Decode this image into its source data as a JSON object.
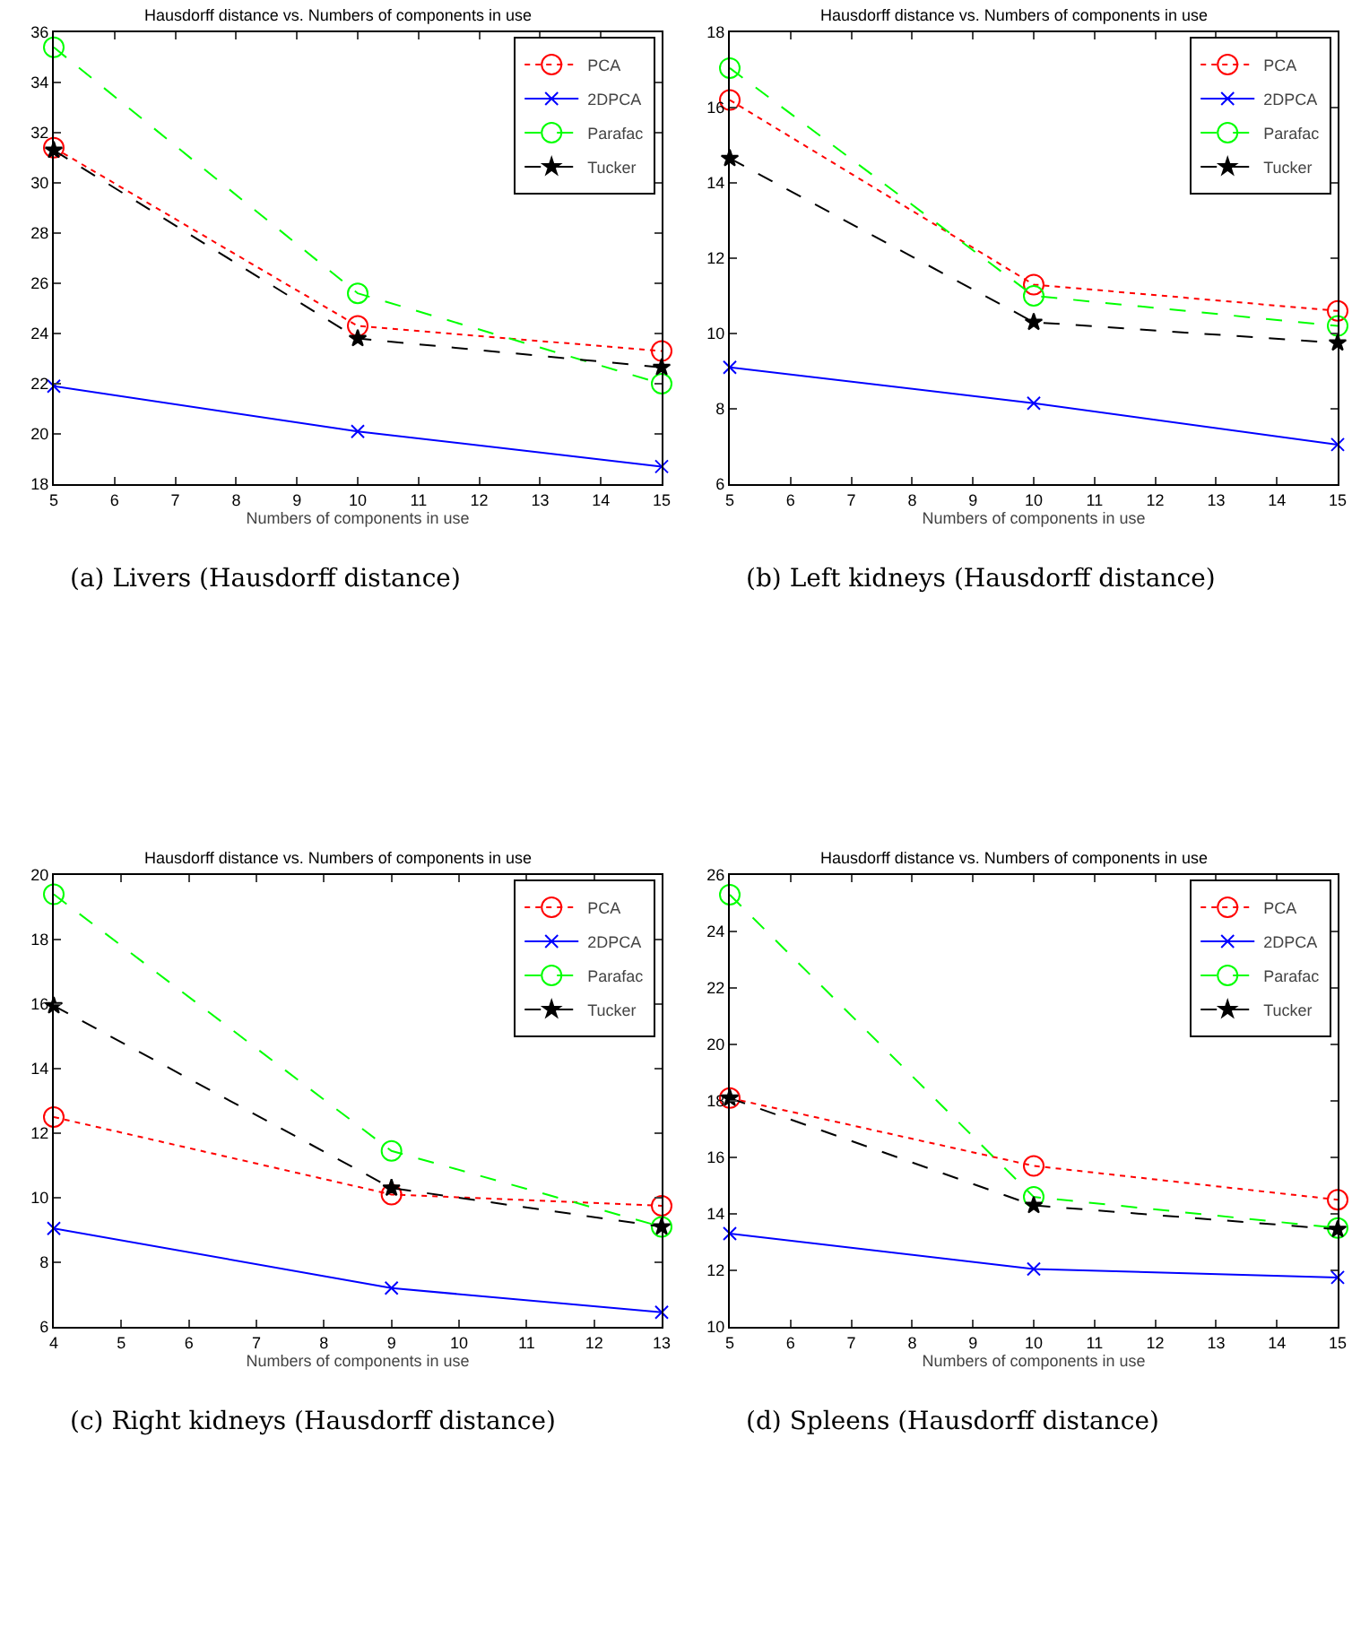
{
  "chart_data": [
    {
      "type": "line",
      "title": "Hausdorff distance vs. Numbers of components in use",
      "xlabel": "Numbers of components in use",
      "annotations": [
        "(a) Livers (Hausdorff distance)"
      ],
      "x": [
        5,
        10,
        15
      ],
      "xlim": [
        5,
        15
      ],
      "xticks": [
        5,
        6,
        7,
        8,
        9,
        10,
        11,
        12,
        13,
        14,
        15
      ],
      "ylim": [
        18,
        36
      ],
      "yticks": [
        18,
        20,
        22,
        24,
        26,
        28,
        30,
        32,
        34,
        36
      ],
      "grid": false,
      "legend": "top right",
      "series": [
        {
          "name": "PCA",
          "color": "#ff0000",
          "values": [
            31.4,
            24.3,
            23.3
          ],
          "marker": "circle",
          "line_style": "dotted"
        },
        {
          "name": "2DPCA",
          "color": "#0000ff",
          "values": [
            21.9,
            20.1,
            18.7
          ],
          "marker": "cross",
          "line_style": "solid"
        },
        {
          "name": "Parafac",
          "color": "#00ff00",
          "values": [
            35.4,
            25.6,
            22.0
          ],
          "marker": "circle",
          "line_style": "dashed"
        },
        {
          "name": "Tucker",
          "color": "#000000",
          "values": [
            31.3,
            23.8,
            22.65
          ],
          "marker": "star",
          "line_style": "dashed"
        }
      ]
    },
    {
      "type": "line",
      "title": "Hausdorff distance vs. Numbers of components in use",
      "xlabel": "Numbers of components in use",
      "annotations": [
        "(b) Left kidneys (Hausdorff distance)"
      ],
      "x": [
        5,
        10,
        15
      ],
      "xlim": [
        5,
        15
      ],
      "xticks": [
        5,
        6,
        7,
        8,
        9,
        10,
        11,
        12,
        13,
        14,
        15
      ],
      "ylim": [
        6,
        18
      ],
      "yticks": [
        6,
        8,
        10,
        12,
        14,
        16,
        18
      ],
      "grid": false,
      "legend": "top right",
      "series": [
        {
          "name": "PCA",
          "color": "#ff0000",
          "values": [
            16.2,
            11.3,
            10.6
          ],
          "marker": "circle",
          "line_style": "dotted"
        },
        {
          "name": "2DPCA",
          "color": "#0000ff",
          "values": [
            9.1,
            8.15,
            7.05
          ],
          "marker": "cross",
          "line_style": "solid"
        },
        {
          "name": "Parafac",
          "color": "#00ff00",
          "values": [
            17.05,
            11.0,
            10.2
          ],
          "marker": "circle",
          "line_style": "dashed"
        },
        {
          "name": "Tucker",
          "color": "#000000",
          "values": [
            14.65,
            10.3,
            9.75
          ],
          "marker": "star",
          "line_style": "dashed"
        }
      ]
    },
    {
      "type": "line",
      "title": "Hausdorff distance vs. Numbers of components in use",
      "xlabel": "Numbers of components in use",
      "annotations": [
        "(c) Right kidneys (Hausdorff distance)"
      ],
      "x": [
        4,
        9,
        13
      ],
      "xlim": [
        4,
        13
      ],
      "xticks": [
        4,
        5,
        6,
        7,
        8,
        9,
        10,
        11,
        12,
        13
      ],
      "ylim": [
        6,
        20
      ],
      "yticks": [
        6,
        8,
        10,
        12,
        14,
        16,
        18,
        20
      ],
      "grid": false,
      "legend": "top right",
      "series": [
        {
          "name": "PCA",
          "color": "#ff0000",
          "values": [
            12.5,
            10.1,
            9.75
          ],
          "marker": "circle",
          "line_style": "dotted"
        },
        {
          "name": "2DPCA",
          "color": "#0000ff",
          "values": [
            9.05,
            7.2,
            6.45
          ],
          "marker": "cross",
          "line_style": "solid"
        },
        {
          "name": "Parafac",
          "color": "#00ff00",
          "values": [
            19.4,
            11.45,
            9.1
          ],
          "marker": "circle",
          "line_style": "dashed"
        },
        {
          "name": "Tucker",
          "color": "#000000",
          "values": [
            15.95,
            10.3,
            9.1
          ],
          "marker": "star",
          "line_style": "dashed"
        }
      ]
    },
    {
      "type": "line",
      "title": "Hausdorff distance vs. Numbers of components in use",
      "xlabel": "Numbers of components in use",
      "annotations": [
        "(d) Spleens (Hausdorff distance)"
      ],
      "x": [
        5,
        10,
        15
      ],
      "xlim": [
        5,
        15
      ],
      "xticks": [
        5,
        6,
        7,
        8,
        9,
        10,
        11,
        12,
        13,
        14,
        15
      ],
      "ylim": [
        10,
        26
      ],
      "yticks": [
        10,
        12,
        14,
        16,
        18,
        20,
        22,
        24,
        26
      ],
      "grid": false,
      "legend": "top right",
      "series": [
        {
          "name": "PCA",
          "color": "#ff0000",
          "values": [
            18.1,
            15.7,
            14.5
          ],
          "marker": "circle",
          "line_style": "dotted"
        },
        {
          "name": "2DPCA",
          "color": "#0000ff",
          "values": [
            13.3,
            12.05,
            11.75
          ],
          "marker": "cross",
          "line_style": "solid"
        },
        {
          "name": "Parafac",
          "color": "#00ff00",
          "values": [
            25.3,
            14.6,
            13.5
          ],
          "marker": "circle",
          "line_style": "dashed"
        },
        {
          "name": "Tucker",
          "color": "#000000",
          "values": [
            18.1,
            14.3,
            13.45
          ],
          "marker": "star",
          "line_style": "dashed"
        }
      ]
    }
  ]
}
